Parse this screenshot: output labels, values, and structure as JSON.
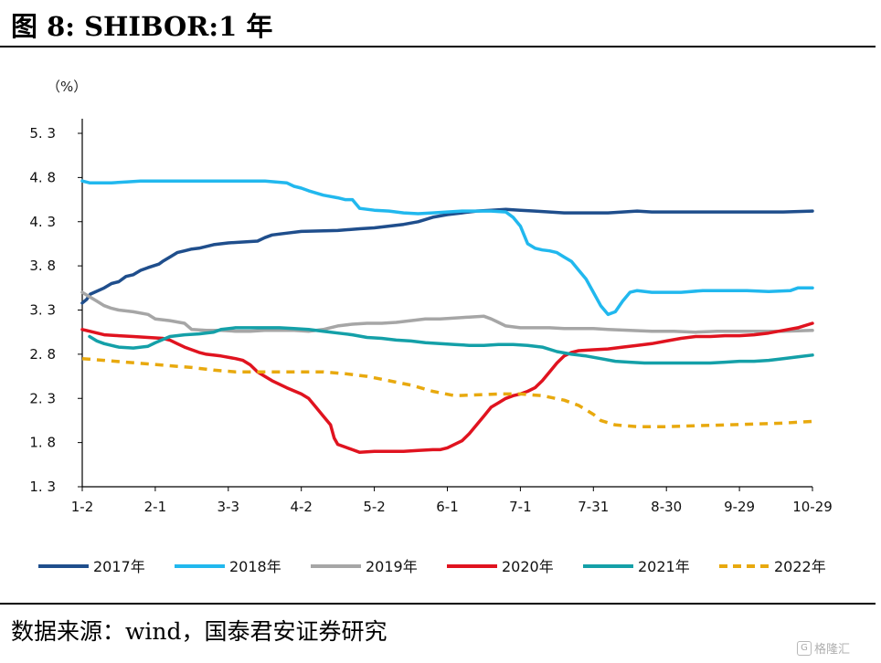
{
  "figure": {
    "title": "图  8:  SHIBOR:1 年",
    "source": "数据来源：wind，国泰君安证券研究",
    "watermark": "格隆汇"
  },
  "chart_data": {
    "type": "line",
    "unit_label": "（%）",
    "ylim": [
      1.3,
      5.3
    ],
    "y_ticks": [
      "5. 3",
      "4. 8",
      "4. 3",
      "3. 8",
      "3. 3",
      "2. 8",
      "2. 3",
      "1. 8",
      "1. 3"
    ],
    "y_tick_values": [
      5.3,
      4.8,
      4.3,
      3.8,
      3.3,
      2.8,
      2.3,
      1.8,
      1.3
    ],
    "x_ticks": [
      "1-2",
      "2-1",
      "3-3",
      "4-2",
      "5-2",
      "6-1",
      "7-1",
      "7-31",
      "8-30",
      "9-29",
      "10-29"
    ],
    "x_index_range": [
      0,
      100
    ],
    "grid": false,
    "legend_position": "bottom",
    "series": [
      {
        "name": "2017年",
        "color": "#1f4e8c",
        "dashed": false,
        "points": [
          [
            0,
            3.38
          ],
          [
            0.6,
            3.42
          ],
          [
            1.1,
            3.48
          ],
          [
            3,
            3.55
          ],
          [
            4,
            3.6
          ],
          [
            5,
            3.62
          ],
          [
            6,
            3.68
          ],
          [
            7,
            3.7
          ],
          [
            8,
            3.75
          ],
          [
            9,
            3.78
          ],
          [
            10.5,
            3.82
          ],
          [
            11,
            3.85
          ],
          [
            12,
            3.9
          ],
          [
            13,
            3.95
          ],
          [
            14,
            3.97
          ],
          [
            15,
            3.99
          ],
          [
            16,
            4.0
          ],
          [
            18,
            4.04
          ],
          [
            20,
            4.06
          ],
          [
            24,
            4.08
          ],
          [
            25,
            4.12
          ],
          [
            26,
            4.15
          ],
          [
            28,
            4.17
          ],
          [
            30,
            4.19
          ],
          [
            35,
            4.2
          ],
          [
            38,
            4.22
          ],
          [
            40,
            4.23
          ],
          [
            42,
            4.25
          ],
          [
            44,
            4.27
          ],
          [
            46,
            4.3
          ],
          [
            48,
            4.35
          ],
          [
            50,
            4.38
          ],
          [
            52,
            4.4
          ],
          [
            54,
            4.42
          ],
          [
            56,
            4.43
          ],
          [
            58,
            4.44
          ],
          [
            60,
            4.43
          ],
          [
            62,
            4.42
          ],
          [
            64,
            4.41
          ],
          [
            66,
            4.4
          ],
          [
            68,
            4.4
          ],
          [
            70,
            4.4
          ],
          [
            72,
            4.4
          ],
          [
            74,
            4.41
          ],
          [
            76,
            4.42
          ],
          [
            78,
            4.41
          ],
          [
            80,
            4.41
          ],
          [
            84,
            4.41
          ],
          [
            88,
            4.41
          ],
          [
            92,
            4.41
          ],
          [
            96,
            4.41
          ],
          [
            100,
            4.42
          ]
        ]
      },
      {
        "name": "2018年",
        "color": "#21b8ee",
        "dashed": false,
        "points": [
          [
            0,
            4.76
          ],
          [
            1,
            4.74
          ],
          [
            4,
            4.74
          ],
          [
            6,
            4.75
          ],
          [
            8,
            4.76
          ],
          [
            15,
            4.76
          ],
          [
            25,
            4.76
          ],
          [
            28,
            4.74
          ],
          [
            29,
            4.7
          ],
          [
            30,
            4.68
          ],
          [
            31,
            4.65
          ],
          [
            33,
            4.6
          ],
          [
            35,
            4.57
          ],
          [
            36,
            4.55
          ],
          [
            37,
            4.55
          ],
          [
            38,
            4.45
          ],
          [
            40,
            4.43
          ],
          [
            42,
            4.42
          ],
          [
            44,
            4.4
          ],
          [
            46,
            4.39
          ],
          [
            48,
            4.4
          ],
          [
            50,
            4.41
          ],
          [
            52,
            4.42
          ],
          [
            54,
            4.42
          ],
          [
            56,
            4.42
          ],
          [
            58,
            4.41
          ],
          [
            59,
            4.35
          ],
          [
            60,
            4.25
          ],
          [
            61,
            4.05
          ],
          [
            62,
            4.0
          ],
          [
            63,
            3.98
          ],
          [
            64,
            3.97
          ],
          [
            65,
            3.95
          ],
          [
            66,
            3.9
          ],
          [
            67,
            3.85
          ],
          [
            68,
            3.75
          ],
          [
            69,
            3.65
          ],
          [
            70,
            3.5
          ],
          [
            71,
            3.35
          ],
          [
            72,
            3.25
          ],
          [
            73,
            3.28
          ],
          [
            74,
            3.4
          ],
          [
            75,
            3.5
          ],
          [
            76,
            3.52
          ],
          [
            78,
            3.5
          ],
          [
            82,
            3.5
          ],
          [
            85,
            3.52
          ],
          [
            88,
            3.52
          ],
          [
            91,
            3.52
          ],
          [
            94,
            3.51
          ],
          [
            97,
            3.52
          ],
          [
            98,
            3.55
          ],
          [
            100,
            3.55
          ]
        ]
      },
      {
        "name": "2019年",
        "color": "#a6a6a6",
        "dashed": false,
        "points": [
          [
            0,
            3.5
          ],
          [
            1,
            3.45
          ],
          [
            2,
            3.4
          ],
          [
            3,
            3.35
          ],
          [
            4,
            3.32
          ],
          [
            5,
            3.3
          ],
          [
            7,
            3.28
          ],
          [
            9,
            3.25
          ],
          [
            10,
            3.2
          ],
          [
            12,
            3.18
          ],
          [
            14,
            3.15
          ],
          [
            15,
            3.08
          ],
          [
            17,
            3.07
          ],
          [
            19,
            3.07
          ],
          [
            21,
            3.06
          ],
          [
            23,
            3.06
          ],
          [
            25,
            3.07
          ],
          [
            27,
            3.07
          ],
          [
            29,
            3.07
          ],
          [
            31,
            3.06
          ],
          [
            33,
            3.08
          ],
          [
            35,
            3.12
          ],
          [
            37,
            3.14
          ],
          [
            39,
            3.15
          ],
          [
            41,
            3.15
          ],
          [
            43,
            3.16
          ],
          [
            45,
            3.18
          ],
          [
            47,
            3.2
          ],
          [
            49,
            3.2
          ],
          [
            51,
            3.21
          ],
          [
            53,
            3.22
          ],
          [
            55,
            3.23
          ],
          [
            56,
            3.2
          ],
          [
            57,
            3.16
          ],
          [
            58,
            3.12
          ],
          [
            60,
            3.1
          ],
          [
            62,
            3.1
          ],
          [
            64,
            3.1
          ],
          [
            66,
            3.09
          ],
          [
            68,
            3.09
          ],
          [
            70,
            3.09
          ],
          [
            72,
            3.08
          ],
          [
            75,
            3.07
          ],
          [
            78,
            3.06
          ],
          [
            81,
            3.06
          ],
          [
            84,
            3.05
          ],
          [
            87,
            3.06
          ],
          [
            90,
            3.06
          ],
          [
            93,
            3.06
          ],
          [
            96,
            3.06
          ],
          [
            100,
            3.07
          ]
        ]
      },
      {
        "name": "2020年",
        "color": "#e0131f",
        "dashed": false,
        "points": [
          [
            0,
            3.08
          ],
          [
            1,
            3.06
          ],
          [
            3,
            3.02
          ],
          [
            5,
            3.01
          ],
          [
            7,
            3.0
          ],
          [
            9,
            2.99
          ],
          [
            11,
            2.98
          ],
          [
            12,
            2.96
          ],
          [
            13,
            2.92
          ],
          [
            14,
            2.88
          ],
          [
            15,
            2.85
          ],
          [
            16,
            2.82
          ],
          [
            17,
            2.8
          ],
          [
            19,
            2.78
          ],
          [
            21,
            2.75
          ],
          [
            22,
            2.73
          ],
          [
            23,
            2.68
          ],
          [
            24,
            2.6
          ],
          [
            25,
            2.55
          ],
          [
            26,
            2.5
          ],
          [
            28,
            2.42
          ],
          [
            30,
            2.35
          ],
          [
            31,
            2.3
          ],
          [
            32,
            2.2
          ],
          [
            33,
            2.1
          ],
          [
            34,
            2.0
          ],
          [
            34.5,
            1.85
          ],
          [
            35,
            1.78
          ],
          [
            36,
            1.75
          ],
          [
            37,
            1.72
          ],
          [
            38,
            1.69
          ],
          [
            40,
            1.7
          ],
          [
            42,
            1.7
          ],
          [
            44,
            1.7
          ],
          [
            46,
            1.71
          ],
          [
            48,
            1.72
          ],
          [
            49,
            1.72
          ],
          [
            50,
            1.74
          ],
          [
            51,
            1.78
          ],
          [
            52,
            1.82
          ],
          [
            53,
            1.9
          ],
          [
            54,
            2.0
          ],
          [
            55,
            2.1
          ],
          [
            56,
            2.2
          ],
          [
            57,
            2.25
          ],
          [
            58,
            2.3
          ],
          [
            59,
            2.33
          ],
          [
            60,
            2.35
          ],
          [
            61,
            2.38
          ],
          [
            62,
            2.42
          ],
          [
            63,
            2.5
          ],
          [
            64,
            2.6
          ],
          [
            65,
            2.7
          ],
          [
            66,
            2.78
          ],
          [
            67,
            2.82
          ],
          [
            68,
            2.84
          ],
          [
            70,
            2.85
          ],
          [
            72,
            2.86
          ],
          [
            74,
            2.88
          ],
          [
            76,
            2.9
          ],
          [
            78,
            2.92
          ],
          [
            80,
            2.95
          ],
          [
            82,
            2.98
          ],
          [
            84,
            3.0
          ],
          [
            86,
            3.0
          ],
          [
            88,
            3.01
          ],
          [
            90,
            3.01
          ],
          [
            92,
            3.02
          ],
          [
            94,
            3.04
          ],
          [
            96,
            3.07
          ],
          [
            98,
            3.1
          ],
          [
            100,
            3.15
          ]
        ]
      },
      {
        "name": "2021年",
        "color": "#14a0a8",
        "dashed": false,
        "points": [
          [
            1,
            3.0
          ],
          [
            2,
            2.95
          ],
          [
            3,
            2.92
          ],
          [
            5,
            2.88
          ],
          [
            7,
            2.87
          ],
          [
            9,
            2.89
          ],
          [
            10,
            2.93
          ],
          [
            12,
            3.0
          ],
          [
            14,
            3.02
          ],
          [
            16,
            3.03
          ],
          [
            18,
            3.05
          ],
          [
            19,
            3.08
          ],
          [
            21,
            3.1
          ],
          [
            23,
            3.1
          ],
          [
            25,
            3.1
          ],
          [
            27,
            3.1
          ],
          [
            29,
            3.09
          ],
          [
            31,
            3.08
          ],
          [
            33,
            3.06
          ],
          [
            35,
            3.04
          ],
          [
            37,
            3.02
          ],
          [
            39,
            2.99
          ],
          [
            41,
            2.98
          ],
          [
            43,
            2.96
          ],
          [
            45,
            2.95
          ],
          [
            47,
            2.93
          ],
          [
            49,
            2.92
          ],
          [
            51,
            2.91
          ],
          [
            53,
            2.9
          ],
          [
            55,
            2.9
          ],
          [
            57,
            2.91
          ],
          [
            59,
            2.91
          ],
          [
            61,
            2.9
          ],
          [
            63,
            2.88
          ],
          [
            65,
            2.83
          ],
          [
            67,
            2.8
          ],
          [
            69,
            2.78
          ],
          [
            71,
            2.75
          ],
          [
            73,
            2.72
          ],
          [
            75,
            2.71
          ],
          [
            77,
            2.7
          ],
          [
            80,
            2.7
          ],
          [
            83,
            2.7
          ],
          [
            86,
            2.7
          ],
          [
            88,
            2.71
          ],
          [
            90,
            2.72
          ],
          [
            92,
            2.72
          ],
          [
            94,
            2.73
          ],
          [
            96,
            2.75
          ],
          [
            98,
            2.77
          ],
          [
            100,
            2.79
          ]
        ]
      },
      {
        "name": "2022年",
        "color": "#e8a90e",
        "dashed": true,
        "points": [
          [
            0,
            2.75
          ],
          [
            3,
            2.73
          ],
          [
            6,
            2.71
          ],
          [
            9,
            2.69
          ],
          [
            12,
            2.67
          ],
          [
            15,
            2.65
          ],
          [
            18,
            2.62
          ],
          [
            21,
            2.6
          ],
          [
            24,
            2.6
          ],
          [
            27,
            2.6
          ],
          [
            30,
            2.6
          ],
          [
            33,
            2.6
          ],
          [
            36,
            2.58
          ],
          [
            39,
            2.55
          ],
          [
            42,
            2.5
          ],
          [
            45,
            2.45
          ],
          [
            48,
            2.38
          ],
          [
            51,
            2.33
          ],
          [
            54,
            2.34
          ],
          [
            57,
            2.35
          ],
          [
            60,
            2.35
          ],
          [
            63,
            2.33
          ],
          [
            66,
            2.28
          ],
          [
            68,
            2.22
          ],
          [
            70,
            2.12
          ],
          [
            71,
            2.05
          ],
          [
            73,
            2.0
          ],
          [
            76,
            1.98
          ],
          [
            80,
            1.98
          ],
          [
            84,
            1.99
          ],
          [
            88,
            2.0
          ],
          [
            92,
            2.01
          ],
          [
            96,
            2.02
          ],
          [
            100,
            2.04
          ]
        ]
      }
    ]
  }
}
